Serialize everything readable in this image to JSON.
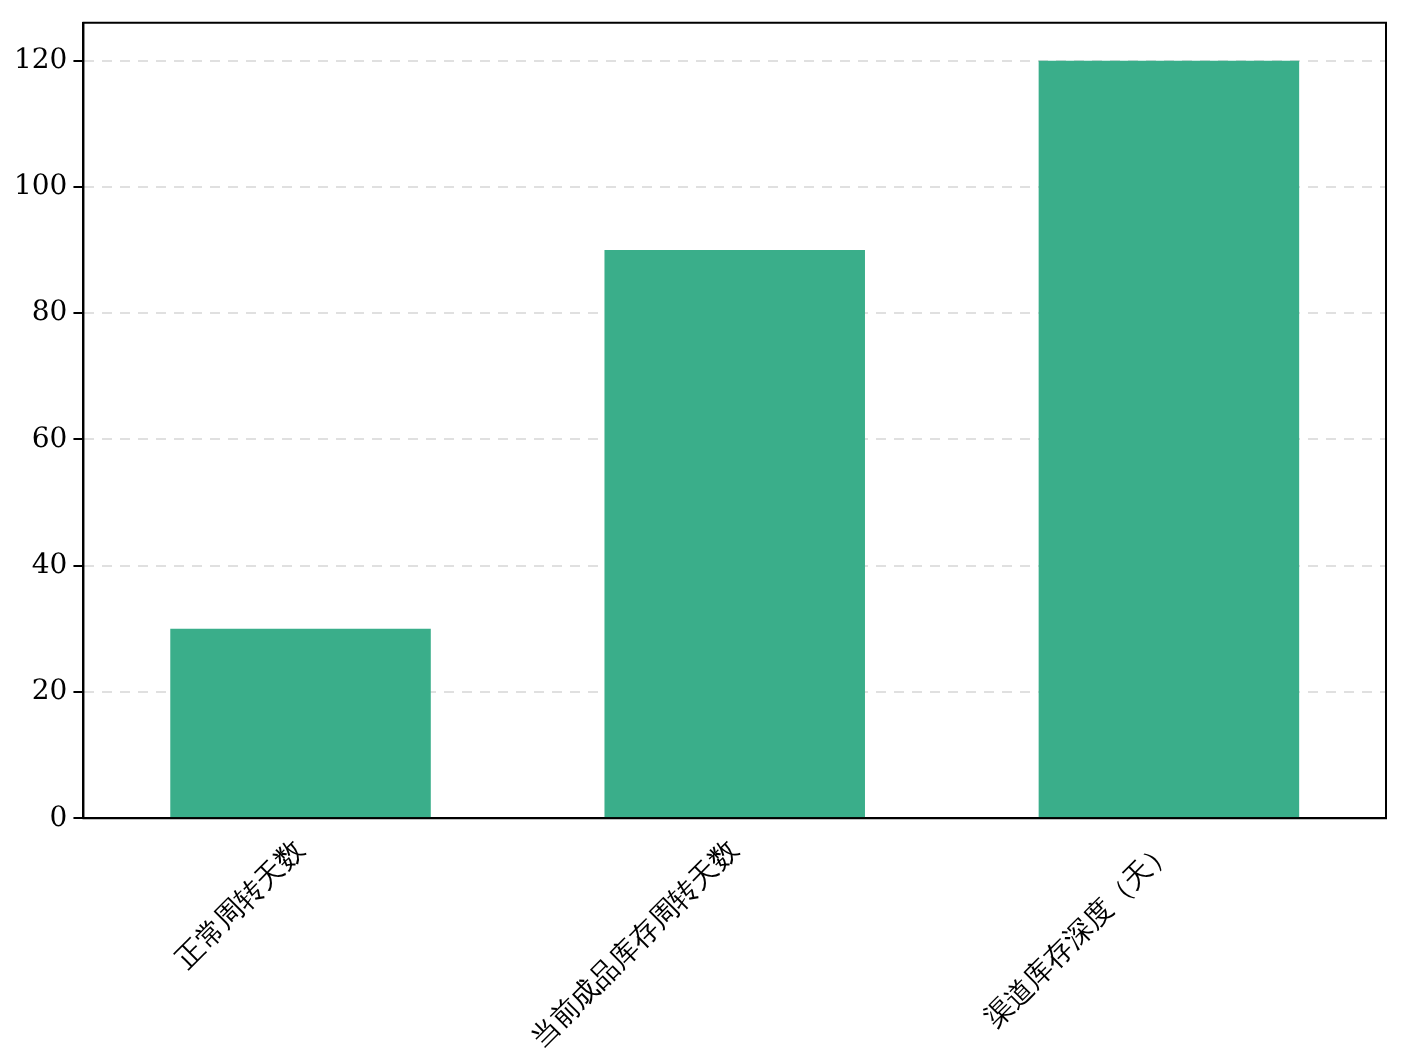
{
  "chart_data": {
    "type": "bar",
    "categories": [
      "正常周转天数",
      "当前成品库存周转天数",
      "渠道库存深度（天）"
    ],
    "values": [
      30,
      90,
      120
    ],
    "color": "#3aae8a",
    "ylim": [
      0,
      126
    ],
    "yticks": [
      0,
      20,
      40,
      60,
      80,
      100,
      120
    ],
    "grid": "y"
  }
}
